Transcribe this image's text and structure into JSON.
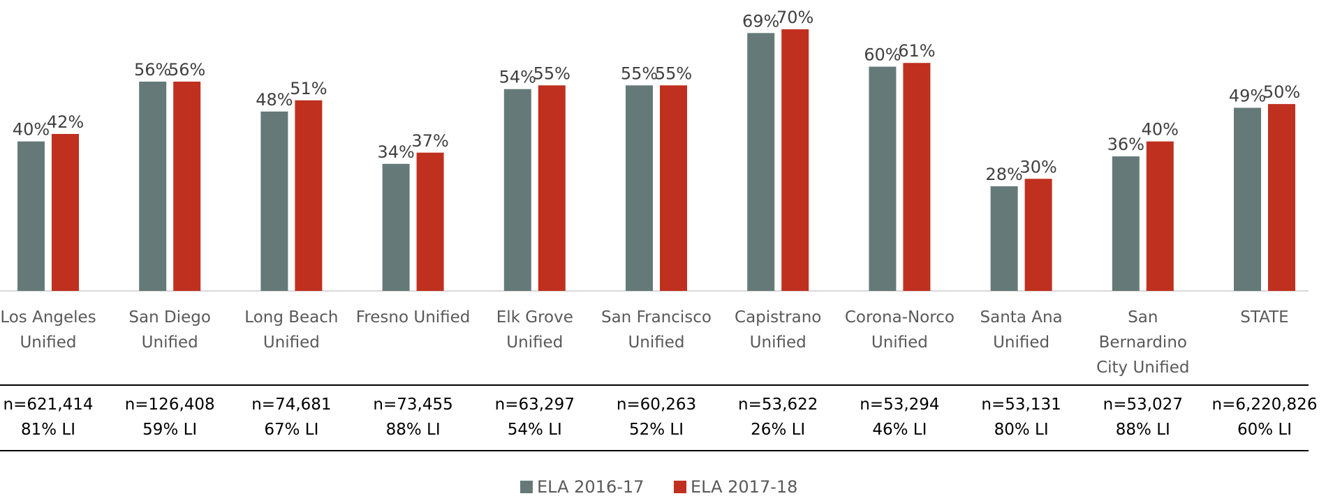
{
  "chart_data": {
    "type": "bar",
    "categories": [
      "Los Angeles Unified",
      "San Diego Unified",
      "Long Beach Unified",
      "Fresno Unified",
      "Elk Grove Unified",
      "San Francisco Unified",
      "Capistrano Unified",
      "Corona-Norco Unified",
      "Santa Ana Unified",
      "San Bernardino City Unified",
      "STATE"
    ],
    "series": [
      {
        "name": "ELA 2016-17",
        "color": "#657a78",
        "values": [
          40,
          56,
          48,
          34,
          54,
          55,
          69,
          60,
          28,
          36,
          49
        ],
        "value_labels": [
          "40%",
          "56%",
          "48%",
          "34%",
          "54%",
          "55%",
          "69%",
          "60%",
          "28%",
          "36%",
          "49%"
        ]
      },
      {
        "name": "ELA 2017-18",
        "color": "#c0301f",
        "values": [
          42,
          56,
          51,
          37,
          55,
          55,
          70,
          61,
          30,
          40,
          50
        ],
        "value_labels": [
          "42%",
          "56%",
          "51%",
          "37%",
          "55%",
          "55%",
          "70%",
          "61%",
          "30%",
          "40%",
          "50%"
        ]
      }
    ],
    "sample_sizes": [
      "n=621,414",
      "n=126,408",
      "n=74,681",
      "n=73,455",
      "n=63,297",
      "n=60,263",
      "n=53,622",
      "n=53,294",
      "n=53,131",
      "n=53,027",
      "n=6,220,826"
    ],
    "low_income": [
      "81% LI",
      "59% LI",
      "67% LI",
      "88% LI",
      "54% LI",
      "52% LI",
      "26% LI",
      "46% LI",
      "80% LI",
      "88% LI",
      "60% LI"
    ],
    "ylim": [
      0,
      70
    ],
    "legend": "bottom"
  }
}
